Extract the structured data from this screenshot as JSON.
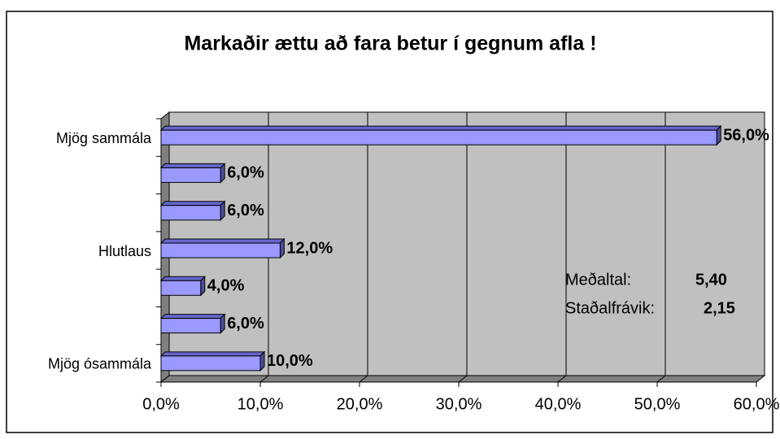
{
  "chart_data": {
    "type": "bar",
    "orientation": "horizontal",
    "title": "Markaðir ættu að fara betur í gegnum afla !",
    "categories": [
      "Mjög sammála",
      null,
      null,
      "Hlutlaus",
      null,
      null,
      "Mjög ósammála"
    ],
    "values": [
      56,
      6,
      6,
      12,
      4,
      6,
      10
    ],
    "value_labels": [
      "56,0%",
      "6,0%",
      "6,0%",
      "12,0%",
      "4,0%",
      "6,0%",
      "10,0%"
    ],
    "color": "#9999ff",
    "xlim": [
      0,
      60
    ],
    "xticks": [
      {
        "value": 0,
        "label": "0,0%"
      },
      {
        "value": 10,
        "label": "10,0%"
      },
      {
        "value": 20,
        "label": "20,0%"
      },
      {
        "value": 30,
        "label": "30,0%"
      },
      {
        "value": 40,
        "label": "40,0%"
      },
      {
        "value": 50,
        "label": "50,0%"
      },
      {
        "value": 60,
        "label": "60,0%"
      }
    ],
    "grid": true,
    "annotations": [
      {
        "label": "Meðaltal:",
        "value": "5,40"
      },
      {
        "label": "Staðalfrávik:",
        "value": "2,15"
      }
    ]
  }
}
